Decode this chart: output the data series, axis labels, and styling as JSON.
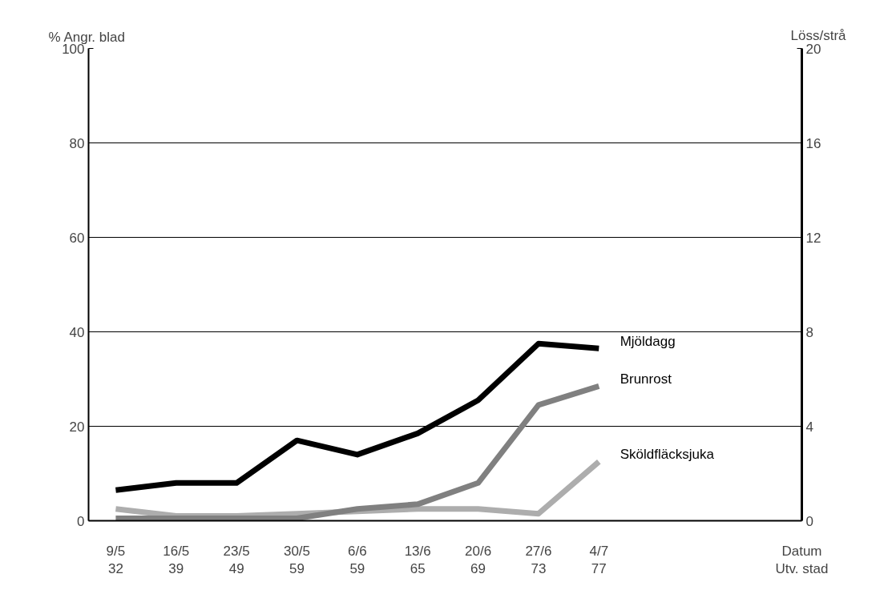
{
  "chart_data": {
    "type": "line",
    "ylabel": "% Angr. blad",
    "categories": [
      "9/5\n32",
      "16/5\n39",
      "23/5\n49",
      "30/5\n59",
      "6/6\n59",
      "13/6\n65",
      "20/6\n69",
      "27/6\n73",
      "4/7\n77"
    ],
    "series": [
      {
        "name": "Mjöldagg",
        "color": "#000000",
        "values": [
          6.5,
          8,
          8,
          17,
          14,
          18.5,
          25.5,
          37.5,
          36.5
        ]
      },
      {
        "name": "Brunrost",
        "color": "#808080",
        "values": [
          0.5,
          0.5,
          0.5,
          0.5,
          2.5,
          3.5,
          8,
          24.5,
          28.5
        ]
      },
      {
        "name": "Sköldfläcksjuka",
        "color": "#adadad",
        "values": [
          2.5,
          1,
          1,
          1.5,
          2,
          2.5,
          2.5,
          1.5,
          12.5
        ]
      }
    ],
    "ylim": [
      0,
      100
    ],
    "yticks": [
      0,
      20,
      40,
      60,
      80,
      100
    ],
    "annotations": [
      "Datum",
      "Utv. stad",
      "Löss/strå",
      "0",
      "4",
      "8",
      "12",
      "16",
      "20"
    ],
    "grid": "y",
    "legend": false,
    "line_style": "solid",
    "marker": "none"
  }
}
